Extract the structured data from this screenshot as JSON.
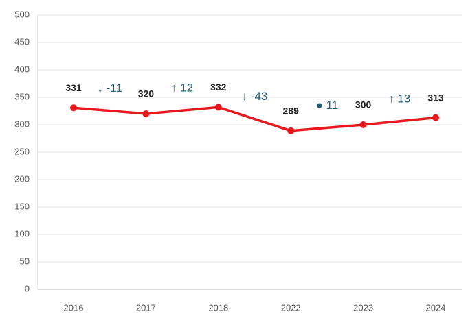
{
  "chart_data": {
    "type": "line",
    "categories": [
      "2016",
      "2017",
      "2018",
      "2022",
      "2023",
      "2024"
    ],
    "series": [
      {
        "name": "Value",
        "color": "#e8191e",
        "values": [
          331,
          320,
          332,
          289,
          300,
          313
        ]
      }
    ],
    "annotations": [
      "↓ -11",
      "↑ 12",
      "↓ -43",
      "● 11",
      "↑ 13"
    ],
    "ylim": [
      0,
      500
    ],
    "yticks": [
      0,
      50,
      100,
      150,
      200,
      250,
      300,
      350,
      400,
      450,
      500
    ],
    "grid": true
  }
}
